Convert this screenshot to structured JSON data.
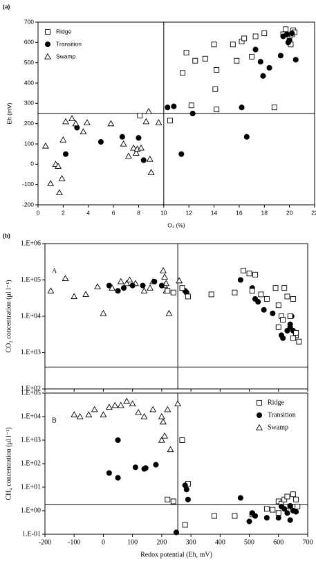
{
  "chart_data": [
    {
      "type": "scatter",
      "title": "(a)",
      "xlabel": "O₂ (%)",
      "ylabel": "Eh (mV)",
      "xlim": [
        0,
        22
      ],
      "xticks": [
        0,
        2,
        4,
        6,
        8,
        10,
        12,
        14,
        16,
        18,
        20,
        22
      ],
      "ylim": [
        -200,
        700
      ],
      "yticks": [
        -200,
        -100,
        0,
        100,
        200,
        300,
        400,
        500,
        600,
        700
      ],
      "vline": 10,
      "hline": 250,
      "legend": "upper left",
      "show_xtick_labels": true,
      "series": [
        {
          "name": "Ridge",
          "marker": "square",
          "color": "#000000",
          "x": [
            8.1,
            10.5,
            11.5,
            11.8,
            12.2,
            12.5,
            13.3,
            14,
            14.1,
            14.2,
            14.2,
            15.5,
            15.8,
            16.2,
            16.4,
            17,
            17.3,
            18,
            18.8,
            19.5,
            19.7,
            20,
            20.1,
            20.3,
            20.2,
            20.4
          ],
          "values": [
            240,
            215,
            450,
            550,
            290,
            510,
            520,
            590,
            370,
            465,
            270,
            590,
            510,
            605,
            620,
            530,
            630,
            645,
            280,
            640,
            665,
            620,
            590,
            660,
            640,
            650
          ]
        },
        {
          "name": "Transition",
          "marker": "circle",
          "color": "#000000",
          "x": [
            2.2,
            3.1,
            5,
            6.7,
            8,
            8.4,
            10.3,
            10.8,
            11.4,
            12.3,
            16.2,
            16.6,
            17.3,
            17.7,
            17.9,
            18.4,
            19.3,
            19.5,
            19.8,
            19.9,
            20,
            20.2,
            20.5
          ],
          "values": [
            50,
            180,
            110,
            135,
            130,
            20,
            280,
            285,
            50,
            250,
            280,
            135,
            565,
            505,
            435,
            475,
            535,
            630,
            640,
            600,
            610,
            645,
            515
          ]
        },
        {
          "name": "Swamp",
          "marker": "triangle",
          "color": "#000000",
          "x": [
            0.6,
            1,
            1.4,
            1.6,
            1.7,
            1.9,
            2,
            2.2,
            2.7,
            3,
            3.6,
            3.9,
            5.8,
            6.8,
            7.2,
            7.6,
            7.8,
            7.9,
            8.2,
            8.8,
            8.6,
            8.9,
            9,
            9.6
          ],
          "values": [
            90,
            -95,
            0,
            -10,
            -140,
            -70,
            120,
            210,
            225,
            200,
            160,
            205,
            200,
            100,
            40,
            80,
            55,
            75,
            80,
            260,
            210,
            25,
            -40,
            205
          ]
        }
      ]
    },
    {
      "type": "scatter",
      "title": "(b)",
      "annotation": "A",
      "ylabel": "CO₂ concentration (μl l⁻¹)",
      "xlim": [
        -200,
        700
      ],
      "xticks": [
        -200,
        -100,
        0,
        100,
        200,
        300,
        400,
        500,
        600,
        700
      ],
      "show_xtick_labels": false,
      "ylim": [
        100,
        1000000
      ],
      "log_y": true,
      "yticks": [
        {
          "value": 100,
          "label": "1.E+02"
        },
        {
          "value": 1000,
          "label": "1.E+03"
        },
        {
          "value": 10000,
          "label": "1.E+04"
        },
        {
          "value": 100000,
          "label": "1.E+05"
        },
        {
          "value": 1000000,
          "label": "1.E+06"
        }
      ],
      "vline": 255,
      "hline": 400,
      "series": [
        {
          "marker": "triangle",
          "color": "#000000",
          "x": [
            -180,
            -130,
            -100,
            -60,
            -20,
            0,
            30,
            60,
            80,
            90,
            110,
            140,
            160,
            170,
            205,
            210,
            215,
            225,
            260,
            210,
            215
          ],
          "values": [
            50000,
            110000,
            35000,
            40000,
            65000,
            12000,
            60000,
            90000,
            80000,
            100000,
            80000,
            50000,
            60000,
            90000,
            180000,
            70000,
            50000,
            12000,
            95000,
            120000,
            80000
          ]
        },
        {
          "marker": "circle",
          "color": "#000000",
          "x": [
            20,
            50,
            70,
            100,
            135,
            175,
            200,
            280,
            285,
            470,
            510,
            520,
            530,
            550,
            580,
            600,
            610,
            615,
            630,
            640,
            650,
            645,
            640
          ],
          "values": [
            70000,
            50000,
            60000,
            70000,
            70000,
            90000,
            70000,
            50000,
            45000,
            100000,
            60000,
            30000,
            25000,
            15000,
            12000,
            5000,
            3000,
            2500,
            4000,
            5000,
            4000,
            10000,
            6000
          ]
        },
        {
          "marker": "square",
          "color": "#000000",
          "x": [
            220,
            240,
            270,
            290,
            370,
            450,
            480,
            500,
            510,
            520,
            540,
            560,
            600,
            610,
            615,
            630,
            620,
            640,
            650,
            660,
            670,
            650,
            590,
            600,
            660
          ],
          "values": [
            50000,
            45000,
            60000,
            35000,
            40000,
            45000,
            180000,
            150000,
            50000,
            140000,
            40000,
            30000,
            20000,
            10000,
            8000,
            35000,
            60000,
            10000,
            30000,
            3000,
            2000,
            2500,
            60000,
            5000,
            3500
          ]
        }
      ]
    },
    {
      "type": "scatter",
      "annotation": "B",
      "xlabel": "Redox potential (Eh, mV)",
      "ylabel": "CH₄ concentration (μl l⁻¹)",
      "xlim": [
        -200,
        700
      ],
      "xticks": [
        -200,
        -100,
        0,
        100,
        200,
        300,
        400,
        500,
        600,
        700
      ],
      "show_xtick_labels": true,
      "ylim": [
        0.1,
        100000
      ],
      "log_y": true,
      "yticks": [
        {
          "value": 0.1,
          "label": "1.E-01"
        },
        {
          "value": 1,
          "label": "1.E+00"
        },
        {
          "value": 10,
          "label": "1.E+01"
        },
        {
          "value": 100,
          "label": "1.E+02"
        },
        {
          "value": 1000,
          "label": "1.E+03"
        },
        {
          "value": 10000,
          "label": "1.E+04"
        },
        {
          "value": 100000,
          "label": "1.E+05"
        }
      ],
      "vline": 255,
      "hline": 1.8,
      "legend": "upper right",
      "series": [
        {
          "name": "Ridge",
          "marker": "square",
          "color": "#000000",
          "x": [
            220,
            240,
            270,
            280,
            290,
            380,
            450,
            510,
            580,
            600,
            610,
            620,
            630,
            640,
            650,
            660,
            665,
            560,
            600
          ],
          "values": [
            3,
            2.5,
            1000,
            0.25,
            14,
            0.6,
            0.6,
            0.7,
            1.1,
            2.5,
            2,
            3,
            4,
            1.5,
            5,
            3,
            1.5,
            1.2,
            0.8
          ]
        },
        {
          "name": "Transition",
          "marker": "circle",
          "color": "#000000",
          "x": [
            20,
            50,
            50,
            110,
            140,
            145,
            180,
            250,
            280,
            285,
            290,
            470,
            500,
            510,
            520,
            560,
            600,
            610,
            620,
            630,
            640,
            650,
            640,
            660
          ],
          "values": [
            40,
            25,
            1000,
            70,
            60,
            65,
            90,
            0.12,
            12,
            8,
            3,
            3.5,
            0.35,
            0.8,
            0.6,
            0.5,
            0.5,
            1.5,
            1.2,
            0.8,
            1.6,
            1,
            0.4,
            0.9
          ]
        },
        {
          "name": "Swamp",
          "marker": "triangle",
          "color": "#000000",
          "x": [
            -100,
            -80,
            -50,
            -30,
            0,
            20,
            40,
            60,
            80,
            100,
            120,
            140,
            170,
            200,
            200,
            205,
            210,
            220,
            230,
            255
          ],
          "values": [
            12000,
            10000,
            12000,
            20000,
            12000,
            25000,
            30000,
            30000,
            45000,
            35000,
            15000,
            10000,
            20000,
            10000,
            1000,
            6000,
            1500,
            20000,
            400,
            35000
          ]
        }
      ]
    }
  ]
}
